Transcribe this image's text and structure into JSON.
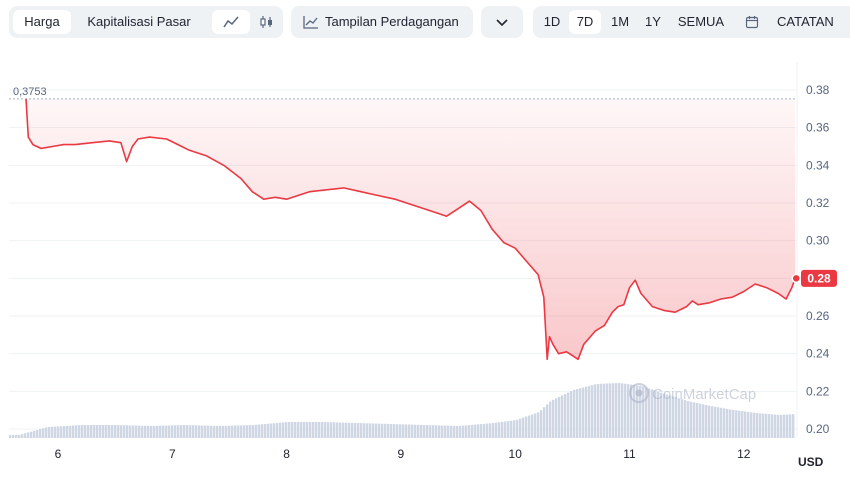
{
  "toolbar": {
    "metric_tabs": [
      "Harga",
      "Kapitalisasi Pasar"
    ],
    "trading_view_label": "Tampilan Perdagangan",
    "ranges": [
      "1D",
      "7D",
      "1M",
      "1Y",
      "SEMUA"
    ],
    "active_range": "7D",
    "notes_label": "CATATAN"
  },
  "chart_data": {
    "type": "area",
    "currency_label": "USD",
    "x_ticks": [
      "6",
      "7",
      "8",
      "9",
      "10",
      "11",
      "12"
    ],
    "y_ticks": [
      "0.38",
      "0.36",
      "0.34",
      "0.32",
      "0.30",
      "0.28",
      "0.26",
      "0.24",
      "0.22",
      "0.20"
    ],
    "ylim": [
      0.2,
      0.38
    ],
    "high_label": "0,3753",
    "high_value": 0.3753,
    "last_price_label": "0.28",
    "last_price": 0.28,
    "watermark": "CoinMarketCap",
    "grid": true,
    "colors": {
      "line": "#ea3943",
      "volume": "#cfd6e4",
      "grid": "#eff2f5"
    },
    "price_series": {
      "x": [
        5.72,
        5.74,
        5.78,
        5.85,
        5.95,
        6.05,
        6.15,
        6.3,
        6.45,
        6.55,
        6.6,
        6.65,
        6.7,
        6.8,
        6.95,
        7.05,
        7.15,
        7.3,
        7.45,
        7.6,
        7.7,
        7.8,
        7.9,
        8.0,
        8.1,
        8.2,
        8.35,
        8.5,
        8.65,
        8.8,
        8.95,
        9.1,
        9.25,
        9.4,
        9.5,
        9.6,
        9.7,
        9.8,
        9.9,
        10.0,
        10.1,
        10.2,
        10.25,
        10.28,
        10.3,
        10.33,
        10.38,
        10.45,
        10.55,
        10.6,
        10.7,
        10.78,
        10.85,
        10.9,
        10.95,
        11.0,
        11.05,
        11.1,
        11.2,
        11.3,
        11.4,
        11.5,
        11.55,
        11.6,
        11.7,
        11.8,
        11.9,
        12.0,
        12.1,
        12.2,
        12.3,
        12.37,
        12.42,
        12.45
      ],
      "y": [
        0.3753,
        0.355,
        0.351,
        0.349,
        0.35,
        0.351,
        0.351,
        0.352,
        0.353,
        0.352,
        0.342,
        0.35,
        0.354,
        0.355,
        0.354,
        0.351,
        0.348,
        0.345,
        0.34,
        0.333,
        0.326,
        0.322,
        0.323,
        0.322,
        0.324,
        0.326,
        0.327,
        0.328,
        0.326,
        0.324,
        0.322,
        0.319,
        0.316,
        0.313,
        0.317,
        0.321,
        0.316,
        0.306,
        0.299,
        0.296,
        0.289,
        0.282,
        0.27,
        0.237,
        0.249,
        0.245,
        0.24,
        0.241,
        0.237,
        0.245,
        0.252,
        0.255,
        0.262,
        0.265,
        0.266,
        0.275,
        0.279,
        0.272,
        0.265,
        0.263,
        0.262,
        0.265,
        0.268,
        0.266,
        0.267,
        0.269,
        0.27,
        0.273,
        0.277,
        0.275,
        0.272,
        0.269,
        0.275,
        0.28
      ]
    },
    "volume_series": {
      "x": [
        5.65,
        5.9,
        6.2,
        6.5,
        6.8,
        7.1,
        7.4,
        7.7,
        8.0,
        8.3,
        8.6,
        8.9,
        9.2,
        9.5,
        9.8,
        10.0,
        10.2,
        10.3,
        10.5,
        10.7,
        10.9,
        11.1,
        11.3,
        11.5,
        11.7,
        11.9,
        12.1,
        12.3,
        12.45
      ],
      "v": [
        3,
        11,
        13,
        13,
        12,
        13,
        12,
        13,
        16,
        16,
        15,
        14,
        13,
        12,
        15,
        18,
        26,
        37,
        48,
        54,
        55,
        52,
        44,
        37,
        32,
        28,
        25,
        23,
        24
      ]
    }
  }
}
